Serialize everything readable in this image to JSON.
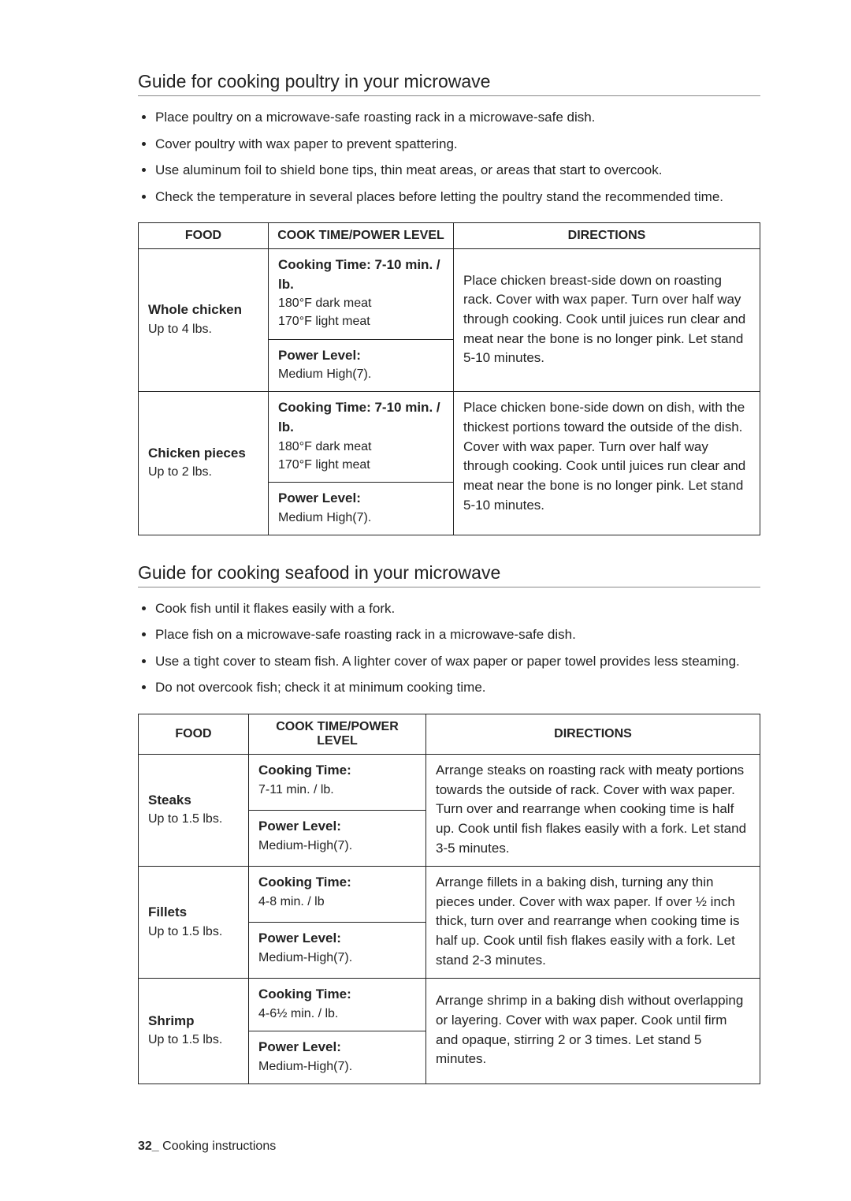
{
  "section1": {
    "title": "Guide for cooking poultry in your microwave",
    "tips": [
      "Place poultry on a microwave-safe roasting rack in a microwave-safe dish.",
      "Cover poultry with wax paper to prevent spattering.",
      "Use aluminum foil to shield bone tips, thin meat areas, or areas that start to overcook.",
      "Check the temperature in several places before letting the poultry stand the recommended time."
    ],
    "headers": {
      "food": "FOOD",
      "cook": "COOK TIME/POWER LEVEL",
      "dir": "DIRECTIONS"
    },
    "rows": [
      {
        "food_name": "Whole chicken",
        "food_qty": "Up to 4 lbs.",
        "cook_time_label": "Cooking Time: 7-10 min. / lb.",
        "cook_time_detail1": "180°F dark meat",
        "cook_time_detail2": "170°F light meat",
        "power_label": "Power Level:",
        "power_value": "Medium High(7).",
        "directions": "Place chicken breast-side down on roasting rack. Cover with wax paper. Turn over half way through cooking. Cook until juices run clear and meat near the bone is no longer pink. Let stand 5-10 minutes."
      },
      {
        "food_name": "Chicken pieces",
        "food_qty": "Up to 2 lbs.",
        "cook_time_label": "Cooking Time: 7-10 min. / lb.",
        "cook_time_detail1": "180°F dark meat",
        "cook_time_detail2": "170°F light meat",
        "power_label": "Power Level:",
        "power_value": "Medium High(7).",
        "directions": "Place chicken bone-side down on dish, with the thickest portions toward the outside of the dish. Cover with wax paper. Turn over half way through cooking. Cook until juices run clear and meat near the bone is no longer pink. Let stand 5-10 minutes."
      }
    ]
  },
  "section2": {
    "title": "Guide for cooking seafood in your microwave",
    "tips": [
      "Cook fish until it flakes easily with a fork.",
      "Place fish on a microwave-safe roasting rack in a microwave-safe dish.",
      "Use a tight cover to steam fish. A lighter cover of wax paper or paper towel provides less steaming.",
      "Do not overcook fish; check it at minimum cooking time."
    ],
    "headers": {
      "food": "FOOD",
      "cook": "COOK TIME/POWER LEVEL",
      "dir": "DIRECTIONS"
    },
    "rows": [
      {
        "food_name": "Steaks",
        "food_qty": "Up to 1.5 lbs.",
        "cook_time_label": "Cooking Time:",
        "cook_time_value": "7-11 min. / lb.",
        "power_label": "Power Level:",
        "power_value": "Medium-High(7).",
        "directions": "Arrange steaks on roasting rack with meaty portions towards the outside of rack. Cover with wax paper. Turn over and rearrange when cooking time is half up. Cook until fish flakes easily with a fork. Let stand 3-5 minutes."
      },
      {
        "food_name": "Fillets",
        "food_qty": "Up to 1.5 lbs.",
        "cook_time_label": "Cooking Time:",
        "cook_time_value": "4-8 min. / lb",
        "power_label": "Power Level:",
        "power_value": "Medium-High(7).",
        "directions": "Arrange fillets in a baking dish, turning any thin pieces under. Cover with wax paper. If over ½ inch thick, turn over and rearrange when cooking time is half up. Cook until fish flakes easily with a fork. Let stand 2-3 minutes."
      },
      {
        "food_name": "Shrimp",
        "food_qty": "Up to 1.5 lbs.",
        "cook_time_label": "Cooking Time:",
        "cook_time_value": "4-6½ min. / lb.",
        "power_label": "Power Level:",
        "power_value": "Medium-High(7).",
        "directions": "Arrange shrimp in a baking dish without overlapping or layering. Cover with wax paper. Cook until firm and opaque, stirring 2 or 3 times. Let stand 5 minutes."
      }
    ]
  },
  "footer": {
    "page": "32_",
    "label": " Cooking instructions"
  }
}
